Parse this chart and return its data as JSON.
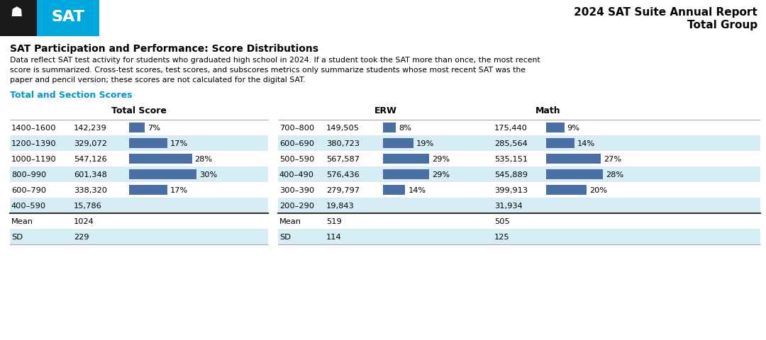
{
  "header_title": "2024 SAT Suite Annual Report",
  "header_subtitle": "Total Group",
  "section_title": "SAT Participation and Performance: Score Distributions",
  "description_lines": [
    "Data reflect SAT test activity for students who graduated high school in 2024. If a student took the SAT more than once, the most recent",
    "score is summarized. Cross-test scores, test scores, and subscores metrics only summarize students whose most recent SAT was the",
    "paper and pencil version; these scores are not calculated for the digital SAT."
  ],
  "subsection_title": "Total and Section Scores",
  "total_header": "Total Score",
  "erw_header": "ERW",
  "math_header": "Math",
  "total_ranges": [
    "1400–1600",
    "1200–1390",
    "1000–1190",
    "800–990",
    "600–790",
    "400–590"
  ],
  "total_counts": [
    "142,239",
    "329,072",
    "547,126",
    "601,348",
    "338,320",
    "15,786"
  ],
  "total_percents": [
    7,
    17,
    28,
    30,
    17,
    null
  ],
  "erw_ranges": [
    "700–800",
    "600–690",
    "500–590",
    "400–490",
    "300–390",
    "200–290"
  ],
  "erw_counts": [
    "149,505",
    "380,723",
    "567,587",
    "576,436",
    "279,797",
    "19,843"
  ],
  "erw_percents": [
    8,
    19,
    29,
    29,
    14,
    null
  ],
  "math_counts": [
    "175,440",
    "285,564",
    "535,151",
    "545,889",
    "399,913",
    "31,934"
  ],
  "math_percents": [
    9,
    14,
    27,
    28,
    20,
    null
  ],
  "total_mean": "1024",
  "total_sd": "229",
  "erw_mean": "519",
  "erw_sd": "114",
  "math_mean": "505",
  "math_sd": "125",
  "bg_light_blue": "#cce8f0",
  "bg_white": "#ffffff",
  "bar_color": "#4a6fa5",
  "text_color": "#000000",
  "cyan_color": "#0099cc",
  "sat_blue": "#00a8e0",
  "black": "#1a1a1a",
  "header_line_color": "#cccccc",
  "sep_line_color": "#444444",
  "row_colors": [
    "#ffffff",
    "#d6edf5",
    "#ffffff",
    "#d6edf5",
    "#ffffff",
    "#d6edf5"
  ],
  "stat_row_colors": [
    "#ffffff",
    "#d6edf5"
  ]
}
